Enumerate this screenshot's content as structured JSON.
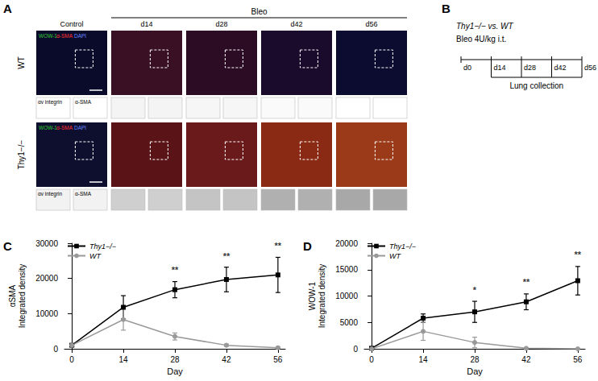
{
  "panel_letters": [
    "A",
    "B",
    "C",
    "D"
  ],
  "panel_a": {
    "header": "Bleo",
    "columns": [
      "Control",
      "d14",
      "d28",
      "d42",
      "d56"
    ],
    "rows": [
      "WT",
      "Thy1−/−"
    ],
    "channel_labels": [
      "WOW-1",
      "α-SMA",
      "DAPI"
    ],
    "inset_labels": [
      "αv integrin",
      "α-SMA"
    ]
  },
  "panel_b": {
    "title": "Thy1−/− vs. WT",
    "treatment": "Bleo 4U/kg i.t.",
    "timepoints": [
      "d0",
      "d14",
      "d28",
      "d42",
      "d56"
    ],
    "bracket_label": "Lung collection"
  },
  "chart_data": [
    {
      "type": "line",
      "xlabel": "Day",
      "ylabel": [
        "αSMA",
        "Integrated density"
      ],
      "x": [
        0,
        14,
        28,
        42,
        56
      ],
      "xlim": [
        -2,
        58
      ],
      "xticks": [
        0,
        14,
        28,
        42,
        56
      ],
      "ylim": [
        0,
        30000
      ],
      "yticks": [
        0,
        10000,
        20000,
        30000
      ],
      "legend": "upper left",
      "series": [
        {
          "name": "Thy1−/−",
          "color": "#000000",
          "marker": "square",
          "values": [
            1000,
            11800,
            16800,
            19700,
            21000
          ],
          "error": [
            300,
            3300,
            2300,
            3500,
            5000
          ]
        },
        {
          "name": "WT",
          "color": "#999999",
          "marker": "circle",
          "values": [
            1000,
            8300,
            3500,
            1000,
            300
          ],
          "error": [
            300,
            3000,
            1000,
            300,
            200
          ]
        }
      ],
      "annotations": [
        {
          "x": 28,
          "y": 20000,
          "text": "**"
        },
        {
          "x": 42,
          "y": 24000,
          "text": "**"
        },
        {
          "x": 56,
          "y": 26800,
          "text": "**"
        }
      ]
    },
    {
      "type": "line",
      "xlabel": "Day",
      "ylabel": [
        "WOW-1",
        "Integrated density"
      ],
      "x": [
        0,
        14,
        28,
        42,
        56
      ],
      "xlim": [
        -2,
        58
      ],
      "xticks": [
        0,
        14,
        28,
        42,
        56
      ],
      "ylim": [
        0,
        20000
      ],
      "yticks": [
        0,
        5000,
        10000,
        15000,
        20000
      ],
      "legend": "upper left",
      "series": [
        {
          "name": "Thy1−/−",
          "color": "#000000",
          "marker": "square",
          "values": [
            100,
            5800,
            7000,
            8900,
            12900
          ],
          "error": [
            200,
            800,
            2000,
            1500,
            2700
          ]
        },
        {
          "name": "WT",
          "color": "#999999",
          "marker": "circle",
          "values": [
            0,
            3300,
            1200,
            100,
            0
          ],
          "error": [
            100,
            1700,
            1000,
            100,
            50
          ]
        }
      ],
      "annotations": [
        {
          "x": 28,
          "y": 9600,
          "text": "*"
        },
        {
          "x": 42,
          "y": 11000,
          "text": "**"
        },
        {
          "x": 56,
          "y": 16200,
          "text": "**"
        }
      ]
    }
  ]
}
